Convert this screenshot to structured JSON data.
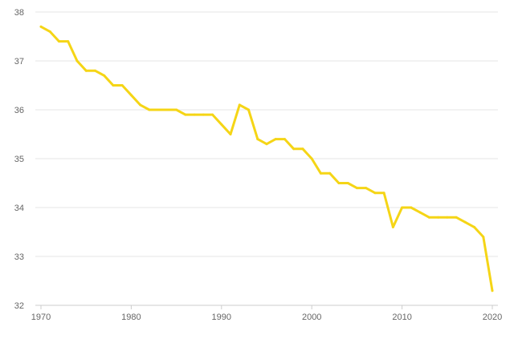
{
  "chart_data": {
    "type": "line",
    "title": "",
    "xlabel": "",
    "ylabel": "",
    "xlim": [
      1970,
      2020
    ],
    "ylim": [
      32,
      38
    ],
    "grid": true,
    "color": "#f5d516",
    "x_ticks": [
      "1970",
      "1980",
      "1990",
      "2000",
      "2010",
      "2020"
    ],
    "y_ticks": [
      "38",
      "37",
      "36",
      "35",
      "34",
      "33",
      "32"
    ],
    "series": [
      {
        "x": [
          1970,
          1971,
          1972,
          1973,
          1974,
          1975,
          1976,
          1977,
          1978,
          1979,
          1980,
          1981,
          1982,
          1983,
          1984,
          1985,
          1986,
          1987,
          1988,
          1989,
          1990,
          1991,
          1992,
          1993,
          1994,
          1995,
          1996,
          1997,
          1998,
          1999,
          2000,
          2001,
          2002,
          2003,
          2004,
          2005,
          2006,
          2007,
          2008,
          2009,
          2010,
          2011,
          2012,
          2013,
          2014,
          2015,
          2016,
          2017,
          2018,
          2019,
          2020
        ],
        "values": [
          37.7,
          37.6,
          37.4,
          37.4,
          37.0,
          36.8,
          36.8,
          36.7,
          36.5,
          36.5,
          36.3,
          36.1,
          36.0,
          36.0,
          36.0,
          36.0,
          35.9,
          35.9,
          35.9,
          35.9,
          35.7,
          35.5,
          36.1,
          36.0,
          35.4,
          35.3,
          35.4,
          35.4,
          35.2,
          35.2,
          35.0,
          34.7,
          34.7,
          34.5,
          34.5,
          34.4,
          34.4,
          34.3,
          34.3,
          33.6,
          34.0,
          34.0,
          33.9,
          33.8,
          33.8,
          33.8,
          33.8,
          33.7,
          33.6,
          33.4,
          32.3
        ]
      }
    ]
  }
}
